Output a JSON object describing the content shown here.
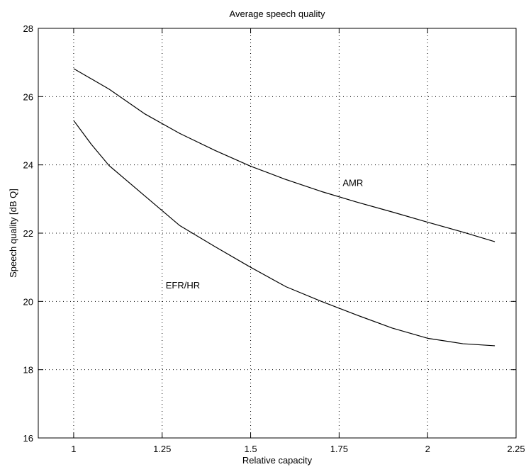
{
  "chart_data": {
    "type": "line",
    "title": "Average speech quality",
    "xlabel": "Relative capacity",
    "ylabel": "Speech quality [dB Q]",
    "xlim": [
      0.9,
      2.25
    ],
    "ylim": [
      16,
      28
    ],
    "xticks": [
      1,
      1.25,
      1.5,
      1.75,
      2,
      2.25
    ],
    "xtick_labels": [
      "1",
      "1.25",
      "1.5",
      "1.75",
      "2",
      "2.25"
    ],
    "yticks": [
      16,
      18,
      20,
      22,
      24,
      26,
      28
    ],
    "ytick_labels": [
      "16",
      "18",
      "20",
      "22",
      "24",
      "26",
      "28"
    ],
    "grid": true,
    "legend": "none",
    "series": [
      {
        "color": "#000000",
        "x": [
          1.0,
          1.1,
          1.2,
          1.3,
          1.4,
          1.5,
          1.6,
          1.7,
          1.8,
          1.9,
          2.0,
          2.1,
          2.19
        ],
        "y": [
          26.82,
          26.22,
          25.5,
          24.92,
          24.42,
          23.96,
          23.57,
          23.22,
          22.91,
          22.62,
          22.32,
          22.03,
          21.75
        ]
      },
      {
        "color": "#000000",
        "x": [
          1.0,
          1.05,
          1.1,
          1.2,
          1.3,
          1.4,
          1.5,
          1.6,
          1.7,
          1.8,
          1.9,
          2.0,
          2.1,
          2.19
        ],
        "y": [
          25.3,
          24.6,
          23.98,
          23.1,
          22.22,
          21.6,
          21.0,
          20.43,
          20.0,
          19.6,
          19.22,
          18.92,
          18.76,
          18.7
        ]
      }
    ],
    "annotations": [
      {
        "text": "AMR",
        "x": 1.76,
        "y": 23.48
      },
      {
        "text": "EFR/HR",
        "x": 1.26,
        "y": 20.48
      }
    ]
  }
}
